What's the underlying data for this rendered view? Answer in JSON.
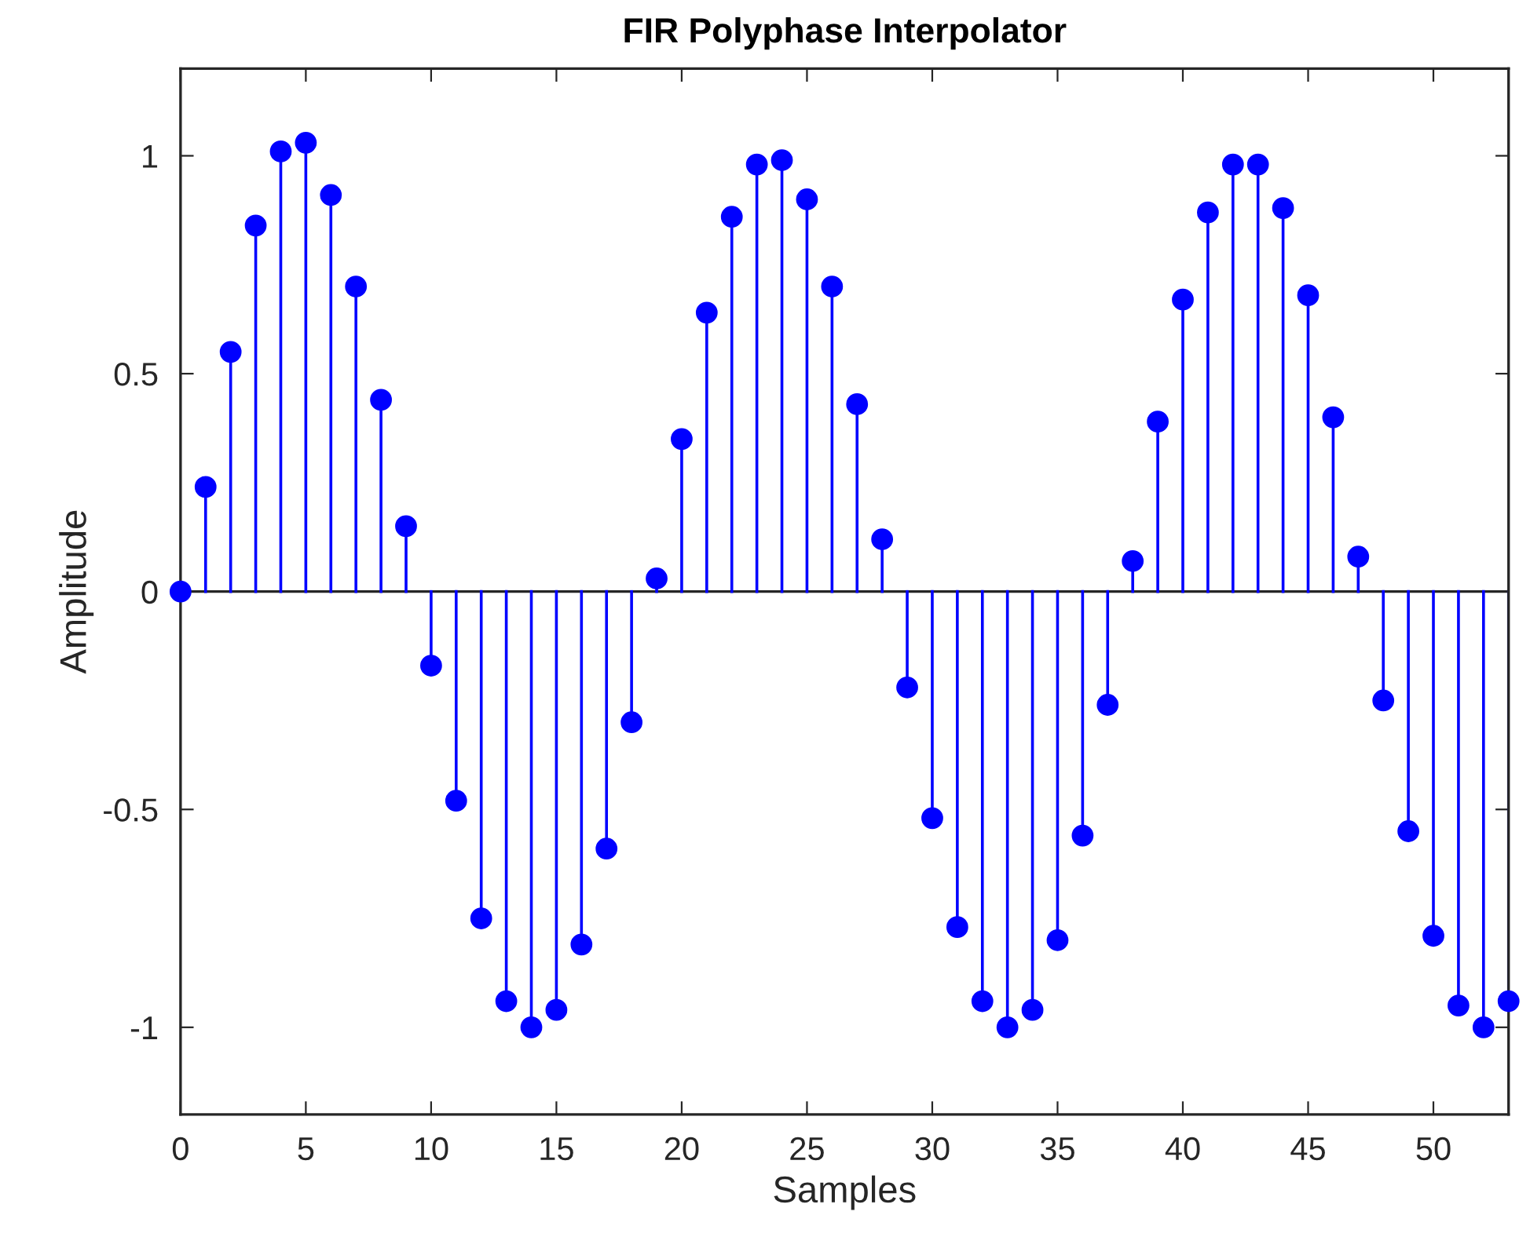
{
  "chart_data": {
    "type": "lollipop",
    "title": "FIR Polyphase Interpolator",
    "xlabel": "Samples",
    "ylabel": "Amplitude",
    "x": [
      0,
      1,
      2,
      3,
      4,
      5,
      6,
      7,
      8,
      9,
      10,
      11,
      12,
      13,
      14,
      15,
      16,
      17,
      18,
      19,
      20,
      21,
      22,
      23,
      24,
      25,
      26,
      27,
      28,
      29,
      30,
      31,
      32,
      33,
      34,
      35,
      36,
      37,
      38,
      39,
      40,
      41,
      42,
      43,
      44,
      45,
      46,
      47,
      48,
      49,
      50,
      51,
      52,
      53
    ],
    "series": [
      {
        "color": "#0000ff",
        "values": [
          0,
          0.24,
          0.55,
          0.84,
          1.01,
          1.03,
          0.91,
          0.7,
          0.44,
          0.15,
          -0.17,
          -0.48,
          -0.75,
          -0.94,
          -1.0,
          -0.96,
          -0.81,
          -0.59,
          -0.3,
          0.03,
          0.35,
          0.64,
          0.86,
          0.98,
          0.99,
          0.9,
          0.7,
          0.43,
          0.12,
          -0.22,
          -0.52,
          -0.77,
          -0.94,
          -1.0,
          -0.96,
          -0.8,
          -0.56,
          -0.26,
          0.07,
          0.39,
          0.67,
          0.87,
          0.98,
          0.98,
          0.88,
          0.68,
          0.4,
          0.08,
          -0.25,
          -0.55,
          -0.79,
          -0.95,
          -1.0,
          -0.94
        ]
      }
    ],
    "xlim": [
      0,
      53
    ],
    "ylim": [
      -1.2,
      1.2
    ],
    "xticks": [
      0,
      5,
      10,
      15,
      20,
      25,
      30,
      35,
      40,
      45,
      50
    ],
    "yticks": [
      {
        "value": -1,
        "label": "-1"
      },
      {
        "value": -0.5,
        "label": "-0.5"
      },
      0,
      0.5,
      1
    ],
    "ref_lines": [
      {
        "axis": "y",
        "value": 0,
        "color": "#262626"
      }
    ],
    "marker": "circle",
    "grid": false,
    "legend": false
  }
}
